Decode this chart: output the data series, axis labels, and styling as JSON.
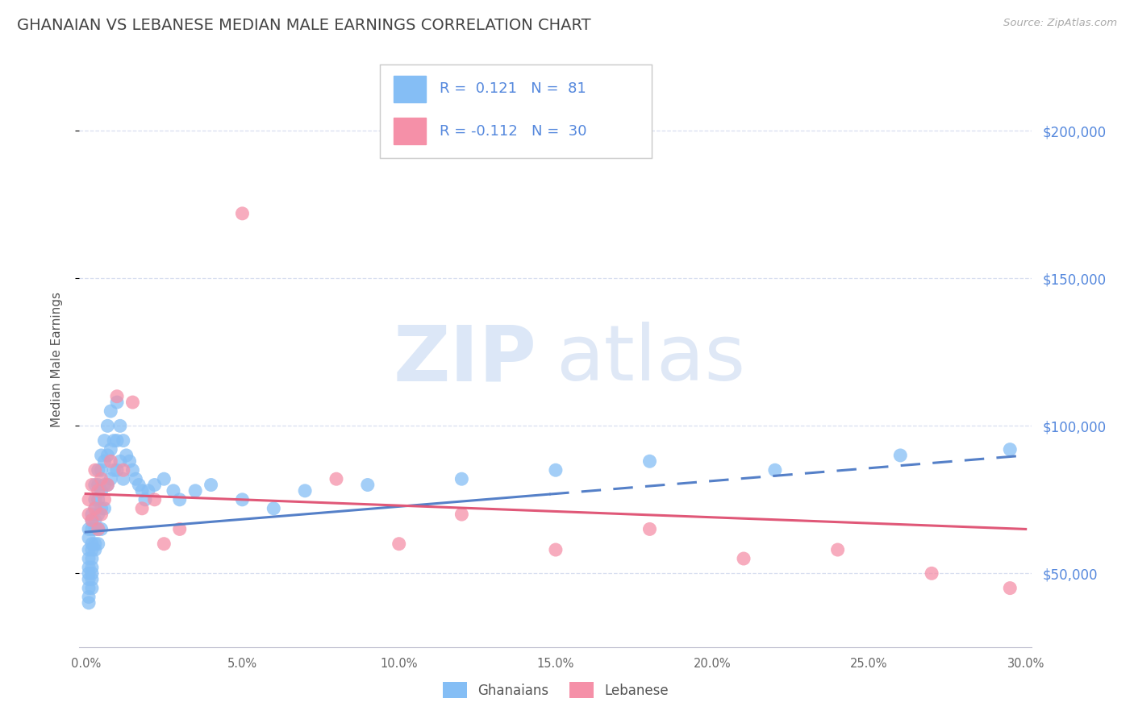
{
  "title": "GHANAIAN VS LEBANESE MEDIAN MALE EARNINGS CORRELATION CHART",
  "source_text": "Source: ZipAtlas.com",
  "ylabel": "Median Male Earnings",
  "xlim": [
    -0.002,
    0.302
  ],
  "ylim": [
    25000,
    220000
  ],
  "xtick_labels": [
    "0.0%",
    "5.0%",
    "10.0%",
    "15.0%",
    "20.0%",
    "25.0%",
    "30.0%"
  ],
  "xtick_vals": [
    0.0,
    0.05,
    0.1,
    0.15,
    0.2,
    0.25,
    0.3
  ],
  "ytick_vals": [
    50000,
    100000,
    150000,
    200000
  ],
  "ytick_labels": [
    "$50,000",
    "$100,000",
    "$150,000",
    "$200,000"
  ],
  "ghanaian_color": "#85bef5",
  "lebanese_color": "#f590a8",
  "trend_ghanaian_color": "#5580c8",
  "trend_lebanese_color": "#e05878",
  "R_ghanaian": 0.121,
  "N_ghanaian": 81,
  "R_lebanese": -0.112,
  "N_lebanese": 30,
  "watermark_zip": "ZIP",
  "watermark_atlas": "atlas",
  "background_color": "#ffffff",
  "grid_color": "#d8dff0",
  "axis_label_color": "#5588dd",
  "title_color": "#444444",
  "ghanaian_x": [
    0.001,
    0.001,
    0.001,
    0.001,
    0.001,
    0.001,
    0.001,
    0.001,
    0.001,
    0.001,
    0.002,
    0.002,
    0.002,
    0.002,
    0.002,
    0.002,
    0.002,
    0.002,
    0.002,
    0.002,
    0.003,
    0.003,
    0.003,
    0.003,
    0.003,
    0.003,
    0.003,
    0.004,
    0.004,
    0.004,
    0.004,
    0.004,
    0.004,
    0.005,
    0.005,
    0.005,
    0.005,
    0.005,
    0.006,
    0.006,
    0.006,
    0.006,
    0.007,
    0.007,
    0.007,
    0.008,
    0.008,
    0.008,
    0.009,
    0.009,
    0.01,
    0.01,
    0.01,
    0.011,
    0.011,
    0.012,
    0.012,
    0.013,
    0.014,
    0.015,
    0.016,
    0.017,
    0.018,
    0.019,
    0.02,
    0.022,
    0.025,
    0.028,
    0.03,
    0.035,
    0.04,
    0.05,
    0.06,
    0.07,
    0.09,
    0.12,
    0.15,
    0.18,
    0.22,
    0.26,
    0.295
  ],
  "ghanaian_y": [
    65000,
    62000,
    58000,
    55000,
    52000,
    50000,
    48000,
    45000,
    42000,
    40000,
    70000,
    68000,
    65000,
    60000,
    58000,
    55000,
    52000,
    50000,
    48000,
    45000,
    80000,
    75000,
    72000,
    68000,
    65000,
    60000,
    58000,
    85000,
    80000,
    75000,
    70000,
    65000,
    60000,
    90000,
    85000,
    78000,
    72000,
    65000,
    95000,
    88000,
    80000,
    72000,
    100000,
    90000,
    80000,
    105000,
    92000,
    82000,
    95000,
    85000,
    108000,
    95000,
    85000,
    100000,
    88000,
    95000,
    82000,
    90000,
    88000,
    85000,
    82000,
    80000,
    78000,
    75000,
    78000,
    80000,
    82000,
    78000,
    75000,
    78000,
    80000,
    75000,
    72000,
    78000,
    80000,
    82000,
    85000,
    88000,
    85000,
    90000,
    92000
  ],
  "lebanese_x": [
    0.001,
    0.001,
    0.002,
    0.002,
    0.003,
    0.003,
    0.004,
    0.004,
    0.005,
    0.005,
    0.006,
    0.007,
    0.008,
    0.01,
    0.012,
    0.015,
    0.018,
    0.022,
    0.025,
    0.03,
    0.05,
    0.08,
    0.1,
    0.12,
    0.15,
    0.18,
    0.21,
    0.24,
    0.27,
    0.295
  ],
  "lebanese_y": [
    75000,
    70000,
    80000,
    68000,
    85000,
    72000,
    78000,
    65000,
    82000,
    70000,
    75000,
    80000,
    88000,
    110000,
    85000,
    108000,
    72000,
    75000,
    60000,
    65000,
    172000,
    82000,
    60000,
    70000,
    58000,
    65000,
    55000,
    58000,
    50000,
    45000
  ],
  "trend_gh_x0": 0.0,
  "trend_gh_x1": 0.3,
  "trend_gh_y0": 64000,
  "trend_gh_y1": 90000,
  "trend_lb_x0": 0.0,
  "trend_lb_x1": 0.3,
  "trend_lb_y0": 77000,
  "trend_lb_y1": 65000
}
